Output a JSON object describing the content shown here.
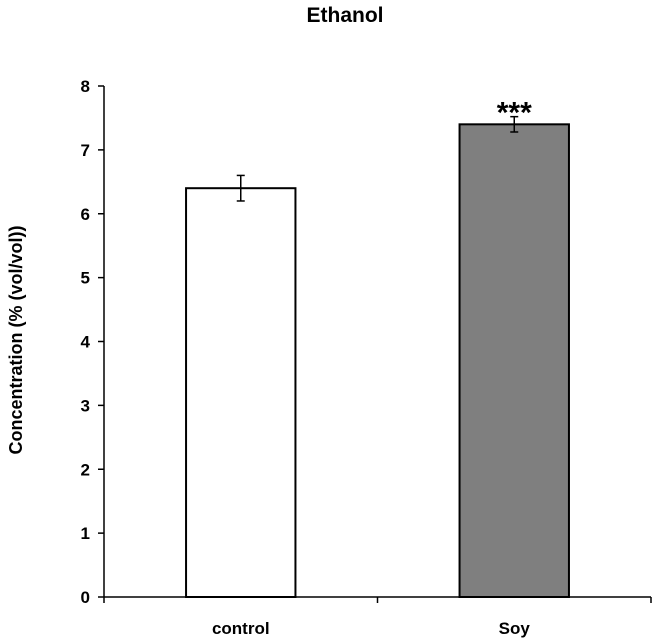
{
  "chart_data": {
    "type": "bar",
    "title": "Ethanol",
    "xlabel": "",
    "ylabel": "Concentration  (% (vol/vol))",
    "categories": [
      "control",
      "Soy"
    ],
    "values": [
      6.4,
      7.4
    ],
    "errors": [
      0.2,
      0.12
    ],
    "bar_colors": [
      "#ffffff",
      "#7f7f7f"
    ],
    "bar_edge_color": "#000000",
    "significance": [
      "",
      "***"
    ],
    "ylim": [
      0,
      8
    ],
    "yticks": [
      "0",
      "1",
      "2",
      "3",
      "4",
      "5",
      "6",
      "7",
      "8"
    ],
    "grid": false,
    "legend": "none"
  }
}
